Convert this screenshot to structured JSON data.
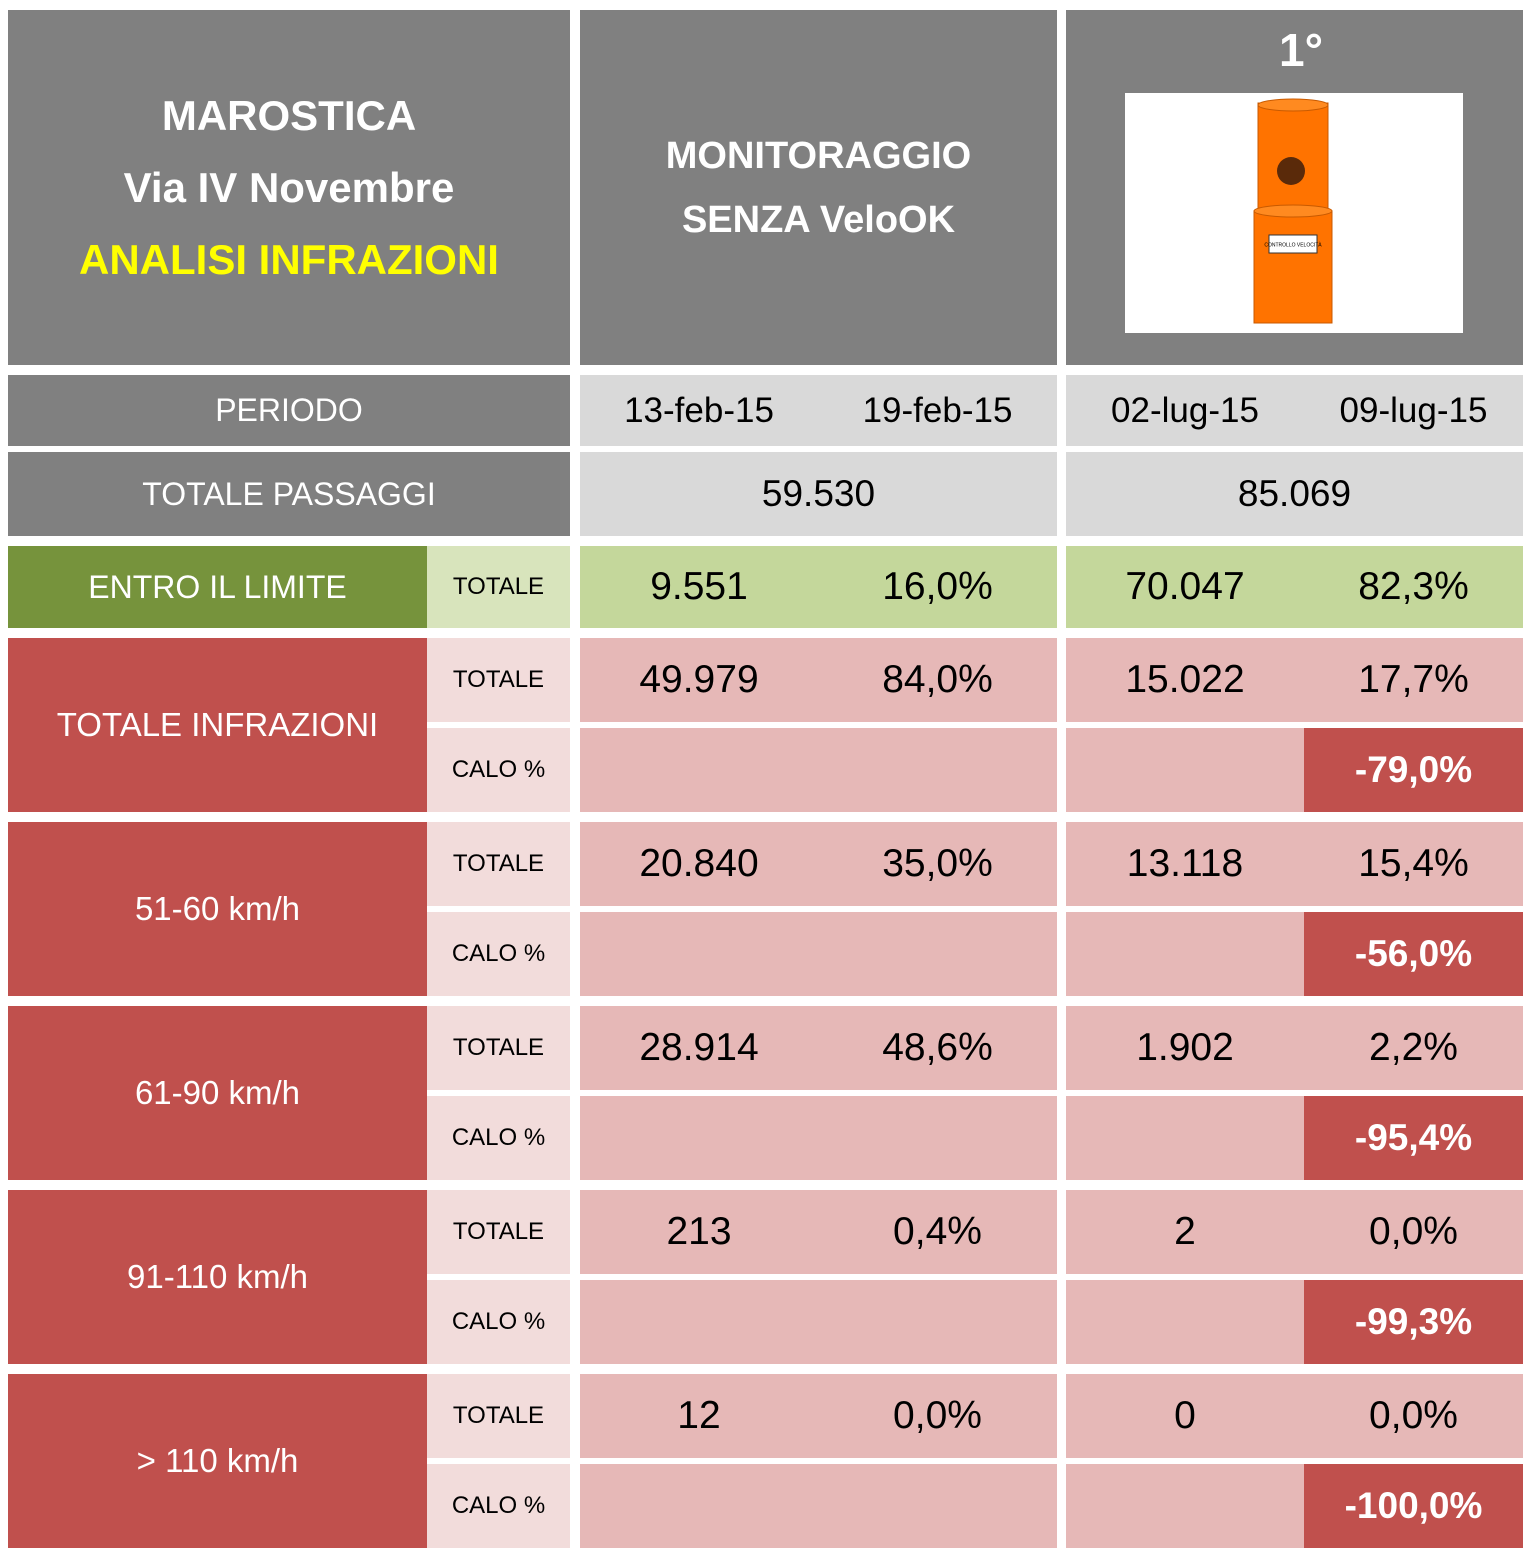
{
  "header": {
    "place": "MAROSTICA",
    "street": "Via IV Novembre",
    "subtitle": "ANALISI INFRAZIONI",
    "monitor_line1": "MONITORAGGIO",
    "monitor_line2": "SENZA VeloOK",
    "rank": "1°",
    "sign_text": "CONTROLLO VELOCITÀ"
  },
  "period": {
    "label": "PERIODO",
    "dates": [
      "13-feb-15",
      "19-feb-15",
      "02-lug-15",
      "09-lug-15"
    ]
  },
  "passages": {
    "label": "TOTALE PASSAGGI",
    "values": [
      "59.530",
      "85.069"
    ]
  },
  "within": {
    "label": "ENTRO IL LIMITE",
    "sub_label": "TOTALE",
    "values": [
      "9.551",
      "16,0%",
      "70.047",
      "82,3%"
    ]
  },
  "groups": [
    {
      "label": "TOTALE INFRAZIONI",
      "total_label": "TOTALE",
      "totals": [
        "49.979",
        "84,0%",
        "15.022",
        "17,7%"
      ],
      "drop_label": "CALO %",
      "drop": "-79,0%"
    },
    {
      "label": "51-60 km/h",
      "total_label": "TOTALE",
      "totals": [
        "20.840",
        "35,0%",
        "13.118",
        "15,4%"
      ],
      "drop_label": "CALO %",
      "drop": "-56,0%"
    },
    {
      "label": "61-90 km/h",
      "total_label": "TOTALE",
      "totals": [
        "28.914",
        "48,6%",
        "1.902",
        "2,2%"
      ],
      "drop_label": "CALO %",
      "drop": "-95,4%"
    },
    {
      "label": "91-110 km/h",
      "total_label": "TOTALE",
      "totals": [
        "213",
        "0,4%",
        "2",
        "0,0%"
      ],
      "drop_label": "CALO %",
      "drop": "-99,3%"
    },
    {
      "label": "> 110 km/h",
      "total_label": "TOTALE",
      "totals": [
        "12",
        "0,0%",
        "0",
        "0,0%"
      ],
      "drop_label": "CALO %",
      "drop": "-100,0%"
    }
  ]
}
